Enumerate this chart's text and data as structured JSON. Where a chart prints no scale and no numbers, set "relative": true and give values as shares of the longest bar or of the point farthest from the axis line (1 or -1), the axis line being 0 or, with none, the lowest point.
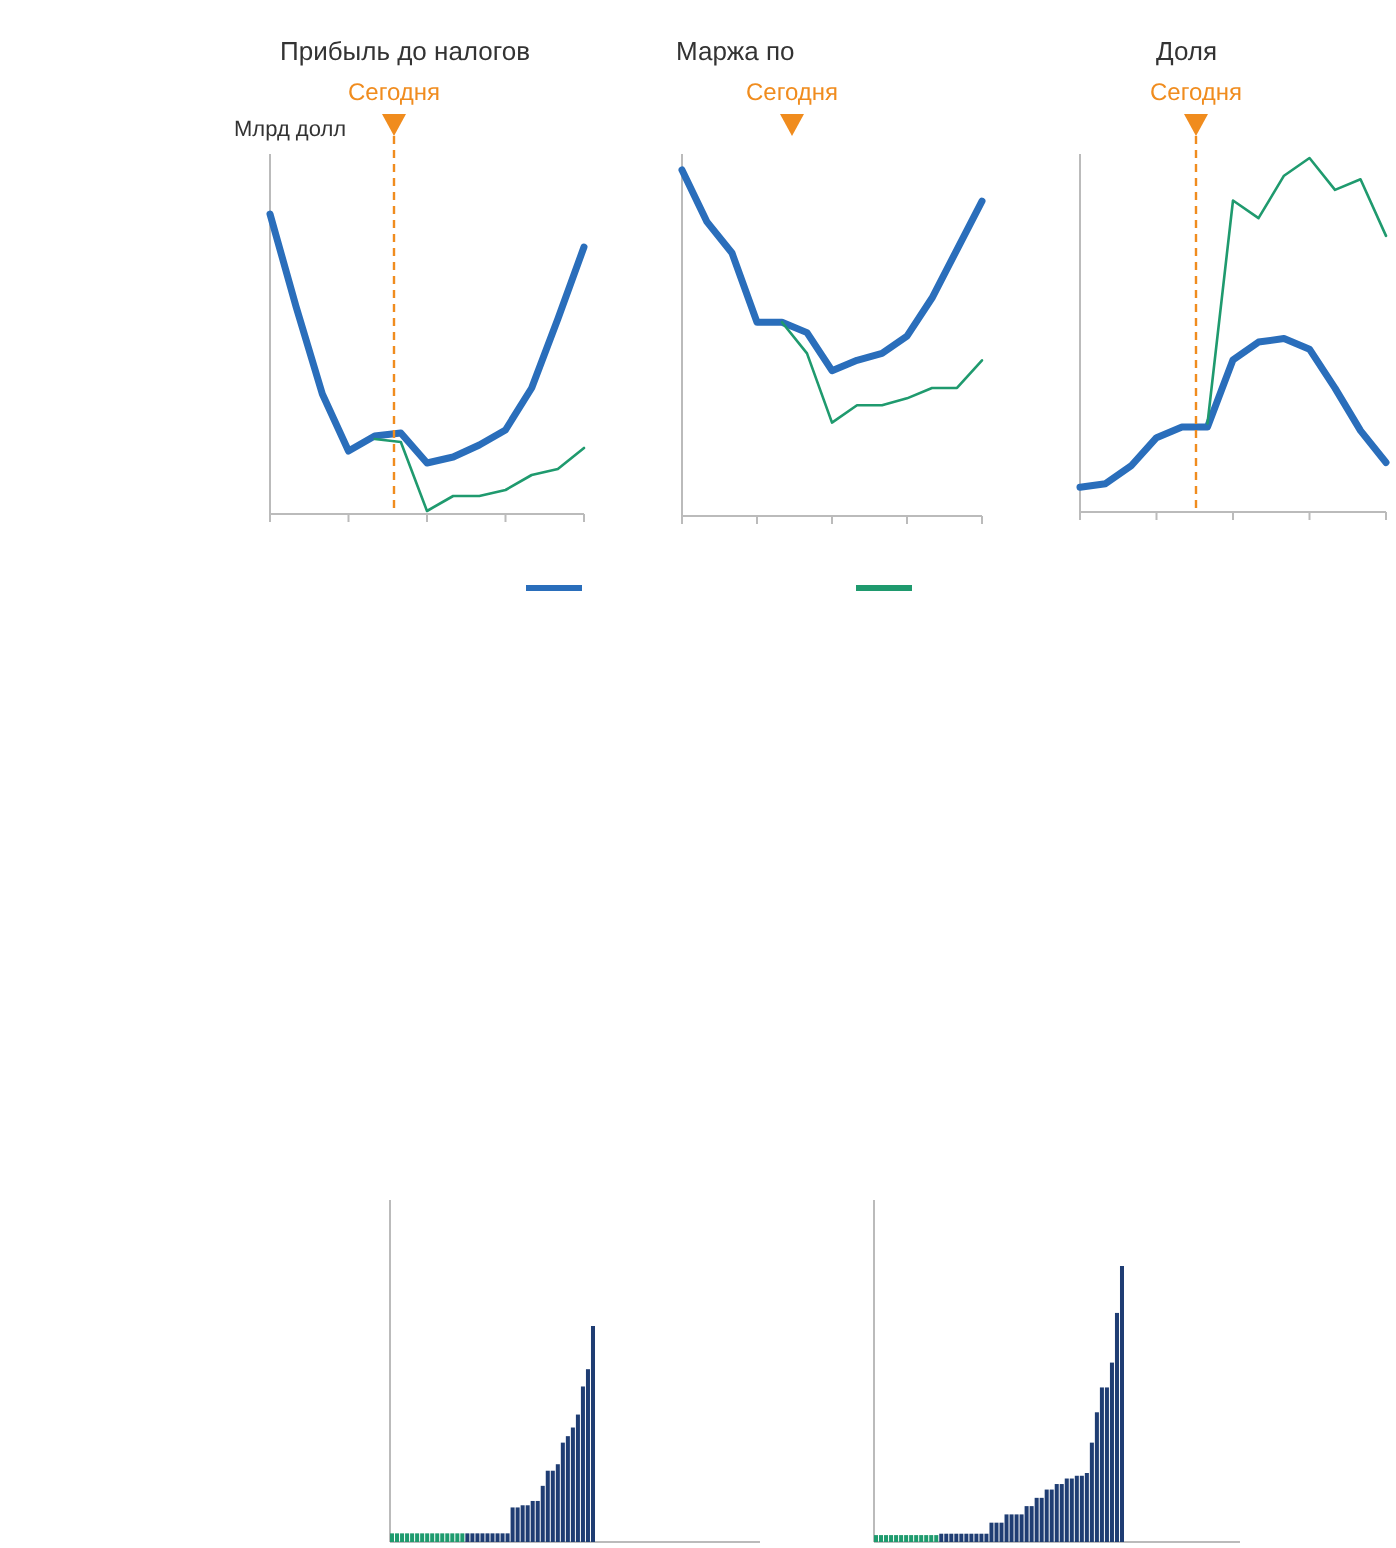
{
  "chart_data": [
    {
      "type": "line",
      "title": "Прибыль до налогов",
      "ylabel": "Млрд долл",
      "relative": true,
      "categories": [
        null,
        null,
        null,
        null,
        null,
        null,
        null,
        null,
        null,
        null,
        null,
        null,
        null
      ],
      "series": [
        {
          "color": "#2a6ebb",
          "values": [
            1,
            0.69,
            0.4,
            0.21,
            0.26,
            0.27,
            0.17,
            0.19,
            0.23,
            0.28,
            0.42,
            0.65,
            0.89
          ]
        },
        {
          "color": "#1f9a6e",
          "values": [
            null,
            null,
            null,
            null,
            0.25,
            0.24,
            0.01,
            0.06,
            0.06,
            0.08,
            0.13,
            0.15,
            0.22
          ]
        }
      ],
      "annotations": [
        "Сегодня"
      ]
    },
    {
      "type": "line",
      "title": "Маржа по",
      "relative": true,
      "categories": [
        null,
        null,
        null,
        null,
        null,
        null,
        null,
        null,
        null,
        null,
        null,
        null,
        null
      ],
      "series": [
        {
          "color": "#2a6ebb",
          "values": [
            1,
            0.85,
            0.76,
            0.56,
            0.56,
            0.53,
            0.42,
            0.45,
            0.47,
            0.52,
            0.63,
            0.77,
            0.91
          ]
        },
        {
          "color": "#1f9a6e",
          "values": [
            null,
            null,
            null,
            null,
            0.56,
            0.47,
            0.27,
            0.32,
            0.32,
            0.34,
            0.37,
            0.37,
            0.45
          ]
        }
      ],
      "annotations": [
        "Сегодня"
      ]
    },
    {
      "type": "line",
      "title": "Доля",
      "relative": true,
      "categories": [
        null,
        null,
        null,
        null,
        null,
        null,
        null,
        null,
        null,
        null,
        null,
        null,
        null
      ],
      "series": [
        {
          "color": "#2a6ebb",
          "values": [
            0.07,
            0.08,
            0.13,
            0.21,
            0.24,
            0.24,
            0.43,
            0.48,
            0.49,
            0.46,
            0.35,
            0.23,
            0.14
          ]
        },
        {
          "color": "#1f9a6e",
          "values": [
            null,
            null,
            null,
            null,
            null,
            0.25,
            0.88,
            0.83,
            0.95,
            1,
            0.91,
            0.94,
            0.78
          ]
        }
      ],
      "annotations": [
        "Сегодня"
      ]
    },
    {
      "type": "bar",
      "relative": true,
      "categories": [
        null,
        null,
        null,
        null,
        null,
        null,
        null,
        null,
        null,
        null,
        null,
        null,
        null,
        null,
        null,
        null,
        null,
        null,
        null,
        null,
        null,
        null,
        null,
        null,
        null,
        null,
        null,
        null,
        null,
        null,
        null,
        null,
        null,
        null,
        null,
        null,
        null,
        null,
        null,
        null,
        null
      ],
      "values": [
        0.04,
        0.04,
        0.04,
        0.04,
        0.04,
        0.04,
        0.04,
        0.04,
        0.04,
        0.04,
        0.04,
        0.04,
        0.04,
        0.04,
        0.04,
        0.04,
        0.04,
        0.04,
        0.04,
        0.04,
        0.04,
        0.04,
        0.04,
        0.04,
        0.16,
        0.16,
        0.17,
        0.17,
        0.19,
        0.19,
        0.26,
        0.33,
        0.33,
        0.36,
        0.46,
        0.49,
        0.53,
        0.59,
        0.72,
        0.8,
        1
      ],
      "colors": [
        "#1e9b6e",
        "#1e9b6e",
        "#1e9b6e",
        "#1e9b6e",
        "#1e9b6e",
        "#1e9b6e",
        "#1e9b6e",
        "#1e9b6e",
        "#1e9b6e",
        "#1e9b6e",
        "#1e9b6e",
        "#1e9b6e",
        "#1e9b6e",
        "#1e9b6e",
        "#1e9b6e",
        "#1f3d73",
        "#1f3d73",
        "#1f3d73",
        "#1f3d73",
        "#1f3d73",
        "#1f3d73",
        "#1f3d73",
        "#1f3d73",
        "#1f3d73",
        "#1f3d73",
        "#1f3d73",
        "#1f3d73",
        "#1f3d73",
        "#1f3d73",
        "#1f3d73",
        "#1f3d73",
        "#1f3d73",
        "#1f3d73",
        "#1f3d73",
        "#1f3d73",
        "#1f3d73",
        "#1f3d73",
        "#1f3d73",
        "#1f3d73",
        "#1f3d73",
        "#1f3d73"
      ]
    },
    {
      "type": "bar",
      "relative": true,
      "categories": [
        null,
        null,
        null,
        null,
        null,
        null,
        null,
        null,
        null,
        null,
        null,
        null,
        null,
        null,
        null,
        null,
        null,
        null,
        null,
        null,
        null,
        null,
        null,
        null,
        null,
        null,
        null,
        null,
        null,
        null,
        null,
        null,
        null,
        null,
        null,
        null,
        null,
        null,
        null,
        null,
        null,
        null,
        null,
        null,
        null,
        null,
        null,
        null,
        null,
        null
      ],
      "values": [
        0.025,
        0.025,
        0.025,
        0.025,
        0.025,
        0.025,
        0.025,
        0.025,
        0.025,
        0.025,
        0.025,
        0.025,
        0.025,
        0.03,
        0.03,
        0.03,
        0.03,
        0.03,
        0.03,
        0.03,
        0.03,
        0.03,
        0.03,
        0.07,
        0.07,
        0.07,
        0.1,
        0.1,
        0.1,
        0.1,
        0.13,
        0.13,
        0.16,
        0.16,
        0.19,
        0.19,
        0.21,
        0.21,
        0.23,
        0.23,
        0.24,
        0.24,
        0.25,
        0.36,
        0.47,
        0.56,
        0.56,
        0.65,
        0.83,
        1
      ],
      "colors": [
        "#1e9b6e",
        "#1e9b6e",
        "#1e9b6e",
        "#1e9b6e",
        "#1e9b6e",
        "#1e9b6e",
        "#1e9b6e",
        "#1e9b6e",
        "#1e9b6e",
        "#1e9b6e",
        "#1e9b6e",
        "#1e9b6e",
        "#1e9b6e",
        "#1f3d73",
        "#1f3d73",
        "#1f3d73",
        "#1f3d73",
        "#1f3d73",
        "#1f3d73",
        "#1f3d73",
        "#1f3d73",
        "#1f3d73",
        "#1f3d73",
        "#1f3d73",
        "#1f3d73",
        "#1f3d73",
        "#1f3d73",
        "#1f3d73",
        "#1f3d73",
        "#1f3d73",
        "#1f3d73",
        "#1f3d73",
        "#1f3d73",
        "#1f3d73",
        "#1f3d73",
        "#1f3d73",
        "#1f3d73",
        "#1f3d73",
        "#1f3d73",
        "#1f3d73",
        "#1f3d73",
        "#1f3d73",
        "#1f3d73",
        "#1f3d73",
        "#1f3d73",
        "#1f3d73",
        "#1f3d73",
        "#1f3d73",
        "#1f3d73",
        "#1f3d73"
      ]
    }
  ]
}
